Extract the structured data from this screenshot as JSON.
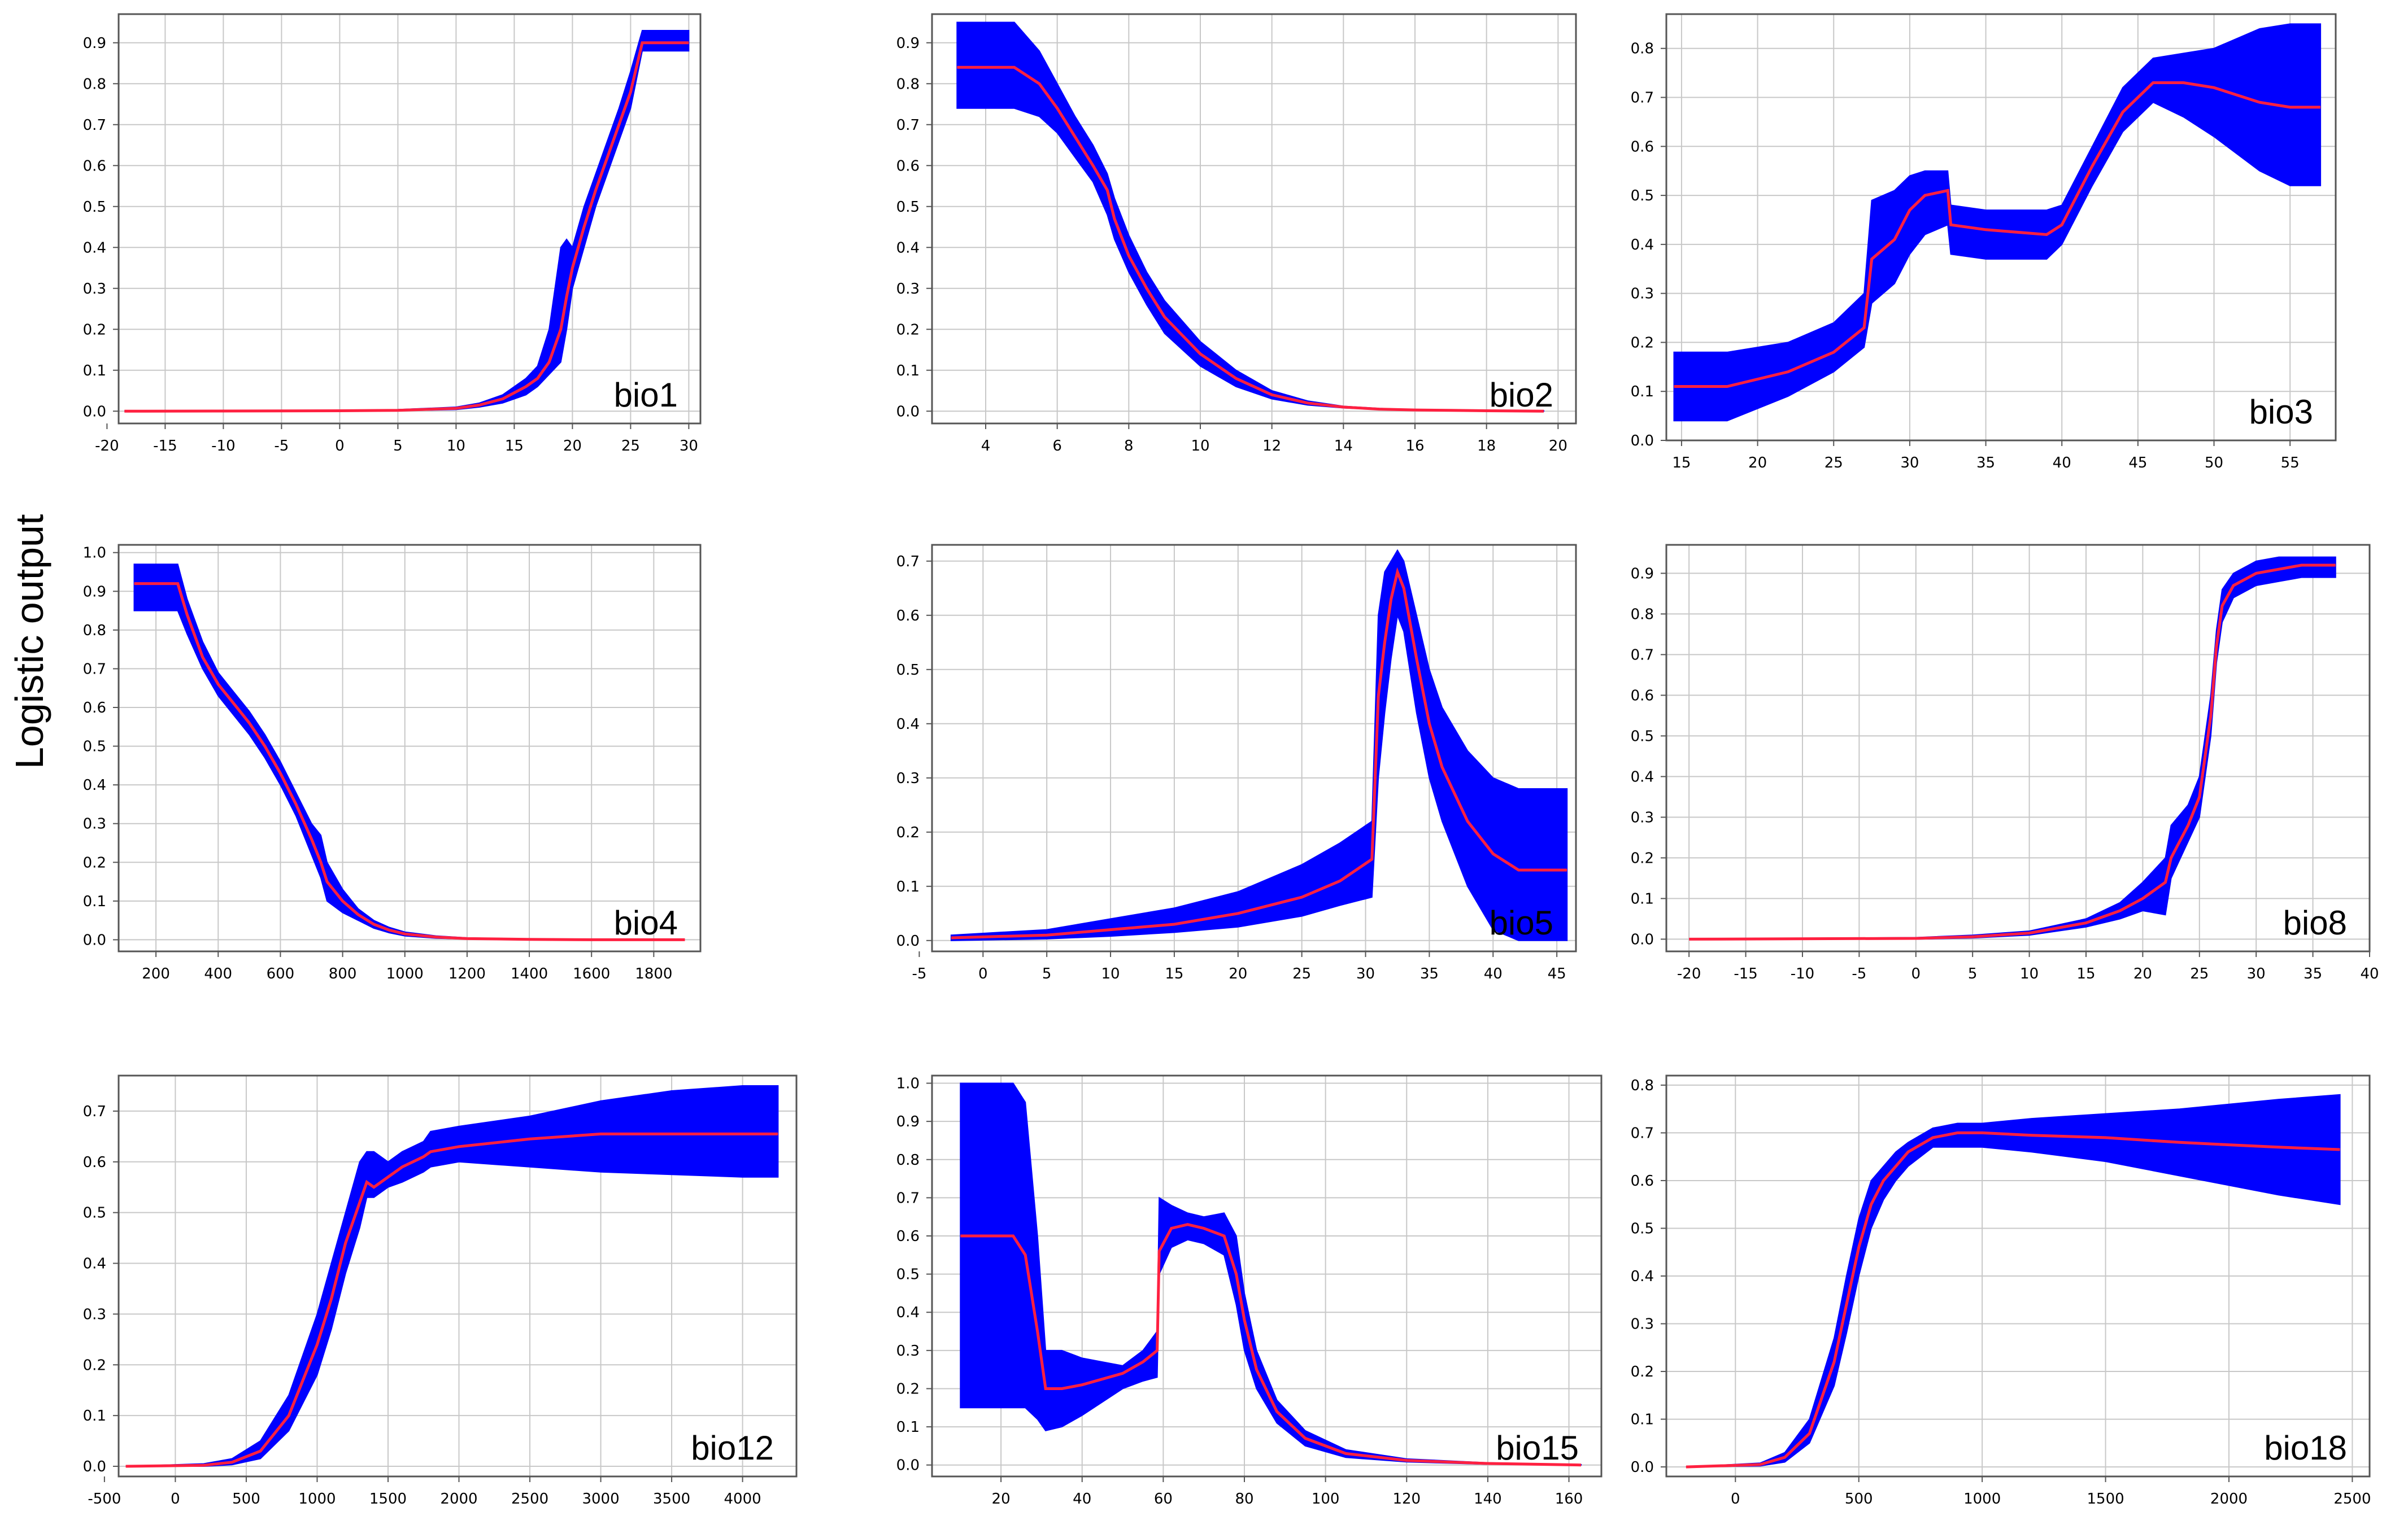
{
  "figure": {
    "ylabel": "Logistic output"
  },
  "chart_data": [
    {
      "type": "area",
      "title": "bio1",
      "xlim": [
        -19,
        31
      ],
      "ylim": [
        -0.03,
        0.97
      ],
      "xticks": [
        -20,
        -15,
        -10,
        -5,
        0,
        5,
        10,
        15,
        20,
        25,
        30
      ],
      "yticks": [
        0,
        0.1,
        0.2,
        0.3,
        0.4,
        0.5,
        0.6,
        0.7,
        0.8,
        0.9
      ],
      "grid": true,
      "band_color": "#0000ff",
      "line_color": "#ff2040",
      "x": [
        -18.5,
        0,
        5,
        10,
        12,
        14,
        16,
        17,
        18,
        19,
        19.5,
        20,
        21,
        22,
        23,
        24,
        25,
        26,
        27,
        28,
        29,
        30
      ],
      "mean": [
        0,
        0.001,
        0.002,
        0.007,
        0.015,
        0.03,
        0.06,
        0.08,
        0.12,
        0.2,
        0.28,
        0.35,
        0.45,
        0.54,
        0.62,
        0.7,
        0.78,
        0.9,
        0.9,
        0.9,
        0.9,
        0.9
      ],
      "lower": [
        0,
        0,
        0.001,
        0.004,
        0.01,
        0.02,
        0.04,
        0.06,
        0.09,
        0.12,
        0.2,
        0.3,
        0.4,
        0.5,
        0.58,
        0.66,
        0.74,
        0.88,
        0.88,
        0.88,
        0.88,
        0.88
      ],
      "upper": [
        0,
        0.002,
        0.004,
        0.01,
        0.02,
        0.04,
        0.08,
        0.11,
        0.2,
        0.4,
        0.42,
        0.4,
        0.5,
        0.58,
        0.66,
        0.74,
        0.83,
        0.93,
        0.93,
        0.93,
        0.93,
        0.93
      ]
    },
    {
      "type": "area",
      "title": "bio2",
      "xlim": [
        2.5,
        20.5
      ],
      "ylim": [
        -0.03,
        0.97
      ],
      "xticks": [
        4,
        6,
        8,
        10,
        12,
        14,
        16,
        18,
        20
      ],
      "yticks": [
        0,
        0.1,
        0.2,
        0.3,
        0.4,
        0.5,
        0.6,
        0.7,
        0.8,
        0.9
      ],
      "grid": true,
      "band_color": "#0000ff",
      "line_color": "#ff2040",
      "x": [
        3.2,
        4.8,
        5.5,
        6,
        6.5,
        7,
        7.4,
        7.6,
        8,
        8.5,
        9,
        10,
        11,
        12,
        13,
        14,
        15,
        16,
        17,
        18,
        19.6
      ],
      "mean": [
        0.84,
        0.84,
        0.8,
        0.74,
        0.67,
        0.6,
        0.54,
        0.47,
        0.38,
        0.3,
        0.23,
        0.14,
        0.08,
        0.04,
        0.02,
        0.01,
        0.005,
        0.003,
        0.002,
        0.001,
        0
      ],
      "lower": [
        0.74,
        0.74,
        0.72,
        0.68,
        0.62,
        0.56,
        0.48,
        0.42,
        0.34,
        0.26,
        0.19,
        0.11,
        0.06,
        0.03,
        0.015,
        0.008,
        0.004,
        0.002,
        0.001,
        0,
        0
      ],
      "upper": [
        0.95,
        0.95,
        0.88,
        0.8,
        0.72,
        0.65,
        0.58,
        0.52,
        0.43,
        0.34,
        0.27,
        0.17,
        0.1,
        0.05,
        0.025,
        0.012,
        0.007,
        0.004,
        0.003,
        0.002,
        0.001
      ]
    },
    {
      "type": "area",
      "title": "bio3",
      "xlim": [
        14,
        58
      ],
      "ylim": [
        0,
        0.87
      ],
      "xticks": [
        15,
        20,
        25,
        30,
        35,
        40,
        45,
        50,
        55
      ],
      "yticks": [
        0,
        0.1,
        0.2,
        0.3,
        0.4,
        0.5,
        0.6,
        0.7,
        0.8
      ],
      "grid": true,
      "band_color": "#0000ff",
      "line_color": "#ff2040",
      "x": [
        14.5,
        18,
        22,
        25,
        27,
        27.5,
        29,
        30,
        31,
        32.5,
        32.7,
        35,
        39,
        40,
        42,
        44,
        46,
        48,
        50,
        53,
        55,
        57
      ],
      "mean": [
        0.11,
        0.11,
        0.14,
        0.18,
        0.23,
        0.37,
        0.41,
        0.47,
        0.5,
        0.51,
        0.44,
        0.43,
        0.42,
        0.44,
        0.56,
        0.67,
        0.73,
        0.73,
        0.72,
        0.69,
        0.68,
        0.68
      ],
      "lower": [
        0.04,
        0.04,
        0.09,
        0.14,
        0.19,
        0.28,
        0.32,
        0.38,
        0.42,
        0.44,
        0.38,
        0.37,
        0.37,
        0.4,
        0.52,
        0.63,
        0.69,
        0.66,
        0.62,
        0.55,
        0.52,
        0.52
      ],
      "upper": [
        0.18,
        0.18,
        0.2,
        0.24,
        0.3,
        0.49,
        0.51,
        0.54,
        0.55,
        0.55,
        0.48,
        0.47,
        0.47,
        0.48,
        0.6,
        0.72,
        0.78,
        0.79,
        0.8,
        0.84,
        0.85,
        0.85
      ]
    },
    {
      "type": "area",
      "title": "bio4",
      "xlim": [
        80,
        1950
      ],
      "ylim": [
        -0.03,
        1.02
      ],
      "xticks": [
        200,
        400,
        600,
        800,
        1000,
        1200,
        1400,
        1600,
        1800
      ],
      "yticks": [
        0,
        0.1,
        0.2,
        0.3,
        0.4,
        0.5,
        0.6,
        0.7,
        0.8,
        0.9,
        1.0
      ],
      "grid": true,
      "band_color": "#0000ff",
      "line_color": "#ff2040",
      "x": [
        130,
        270,
        300,
        350,
        400,
        450,
        500,
        550,
        600,
        650,
        700,
        730,
        750,
        800,
        850,
        900,
        950,
        1000,
        1100,
        1200,
        1400,
        1600,
        1900
      ],
      "mean": [
        0.92,
        0.92,
        0.84,
        0.73,
        0.66,
        0.61,
        0.56,
        0.5,
        0.43,
        0.35,
        0.26,
        0.2,
        0.15,
        0.1,
        0.065,
        0.04,
        0.025,
        0.015,
        0.007,
        0.003,
        0.001,
        0,
        0
      ],
      "lower": [
        0.85,
        0.85,
        0.79,
        0.7,
        0.63,
        0.58,
        0.53,
        0.47,
        0.4,
        0.32,
        0.22,
        0.16,
        0.1,
        0.07,
        0.05,
        0.03,
        0.018,
        0.01,
        0.004,
        0.002,
        0,
        0,
        0
      ],
      "upper": [
        0.97,
        0.97,
        0.88,
        0.77,
        0.69,
        0.64,
        0.59,
        0.53,
        0.46,
        0.38,
        0.3,
        0.27,
        0.2,
        0.13,
        0.08,
        0.05,
        0.032,
        0.02,
        0.01,
        0.005,
        0.002,
        0.001,
        0
      ]
    },
    {
      "type": "area",
      "title": "bio5",
      "xlim": [
        -4,
        46.5
      ],
      "ylim": [
        -0.02,
        0.73
      ],
      "xticks": [
        -5,
        0,
        5,
        10,
        15,
        20,
        25,
        30,
        35,
        40,
        45
      ],
      "yticks": [
        0,
        0.1,
        0.2,
        0.3,
        0.4,
        0.5,
        0.6,
        0.7
      ],
      "grid": true,
      "band_color": "#0000ff",
      "line_color": "#ff2040",
      "x": [
        -2.5,
        5,
        10,
        15,
        20,
        25,
        28,
        30.5,
        31,
        31.5,
        32,
        32.5,
        33,
        34,
        35,
        36,
        38,
        40,
        42,
        44,
        45.8
      ],
      "mean": [
        0.005,
        0.01,
        0.02,
        0.03,
        0.05,
        0.08,
        0.11,
        0.15,
        0.45,
        0.55,
        0.63,
        0.68,
        0.65,
        0.52,
        0.4,
        0.32,
        0.22,
        0.16,
        0.13,
        0.13,
        0.13
      ],
      "lower": [
        0,
        0.003,
        0.008,
        0.015,
        0.025,
        0.045,
        0.065,
        0.08,
        0.3,
        0.42,
        0.52,
        0.6,
        0.57,
        0.42,
        0.3,
        0.22,
        0.1,
        0.02,
        0,
        0,
        0
      ],
      "upper": [
        0.01,
        0.02,
        0.04,
        0.06,
        0.09,
        0.14,
        0.18,
        0.22,
        0.6,
        0.68,
        0.7,
        0.72,
        0.7,
        0.6,
        0.5,
        0.43,
        0.35,
        0.3,
        0.28,
        0.28,
        0.28
      ]
    },
    {
      "type": "area",
      "title": "bio8",
      "xlim": [
        -22,
        40
      ],
      "ylim": [
        -0.03,
        0.97
      ],
      "xticks": [
        -20,
        -15,
        -10,
        -5,
        0,
        5,
        10,
        15,
        20,
        25,
        30,
        35,
        40
      ],
      "yticks": [
        0,
        0.1,
        0.2,
        0.3,
        0.4,
        0.5,
        0.6,
        0.7,
        0.8,
        0.9
      ],
      "grid": true,
      "band_color": "#0000ff",
      "line_color": "#ff2040",
      "x": [
        -20,
        0,
        5,
        10,
        15,
        18,
        20,
        22,
        22.5,
        24,
        25,
        26,
        26.5,
        27,
        28,
        30,
        32,
        34,
        37
      ],
      "mean": [
        0,
        0.002,
        0.006,
        0.015,
        0.04,
        0.07,
        0.1,
        0.14,
        0.2,
        0.28,
        0.35,
        0.55,
        0.72,
        0.82,
        0.87,
        0.9,
        0.91,
        0.92,
        0.92
      ],
      "lower": [
        0,
        0,
        0.003,
        0.01,
        0.03,
        0.05,
        0.07,
        0.06,
        0.15,
        0.24,
        0.3,
        0.5,
        0.68,
        0.78,
        0.84,
        0.87,
        0.88,
        0.89,
        0.89
      ],
      "upper": [
        0,
        0.004,
        0.01,
        0.02,
        0.05,
        0.09,
        0.14,
        0.2,
        0.28,
        0.33,
        0.4,
        0.6,
        0.76,
        0.86,
        0.9,
        0.93,
        0.94,
        0.94,
        0.94
      ]
    },
    {
      "type": "area",
      "title": "bio12",
      "xlim": [
        -400,
        4380
      ],
      "ylim": [
        -0.02,
        0.77
      ],
      "xticks": [
        -500,
        0,
        500,
        1000,
        1500,
        2000,
        2500,
        3000,
        3500,
        4000
      ],
      "yticks": [
        0,
        0.1,
        0.2,
        0.3,
        0.4,
        0.5,
        0.6,
        0.7
      ],
      "grid": true,
      "band_color": "#0000ff",
      "line_color": "#ff2040",
      "x": [
        -350,
        200,
        400,
        600,
        800,
        1000,
        1100,
        1200,
        1300,
        1350,
        1400,
        1500,
        1600,
        1750,
        1800,
        2000,
        2500,
        3000,
        3500,
        4000,
        4250
      ],
      "mean": [
        0,
        0.002,
        0.008,
        0.03,
        0.1,
        0.24,
        0.33,
        0.44,
        0.52,
        0.56,
        0.55,
        0.57,
        0.59,
        0.61,
        0.62,
        0.63,
        0.645,
        0.655,
        0.655,
        0.655,
        0.655
      ],
      "lower": [
        0,
        0,
        0.003,
        0.015,
        0.07,
        0.18,
        0.27,
        0.38,
        0.47,
        0.53,
        0.53,
        0.55,
        0.56,
        0.58,
        0.59,
        0.6,
        0.59,
        0.58,
        0.575,
        0.57,
        0.57
      ],
      "upper": [
        0,
        0.005,
        0.015,
        0.05,
        0.14,
        0.3,
        0.4,
        0.5,
        0.6,
        0.62,
        0.62,
        0.6,
        0.62,
        0.64,
        0.66,
        0.67,
        0.69,
        0.72,
        0.74,
        0.75,
        0.75
      ]
    },
    {
      "type": "area",
      "title": "bio15",
      "xlim": [
        3,
        168
      ],
      "ylim": [
        -0.03,
        1.02
      ],
      "xticks": [
        20,
        40,
        60,
        80,
        100,
        120,
        140,
        160
      ],
      "yticks": [
        0,
        0.1,
        0.2,
        0.3,
        0.4,
        0.5,
        0.6,
        0.7,
        0.8,
        0.9,
        1.0
      ],
      "grid": true,
      "band_color": "#0000ff",
      "line_color": "#ff2040",
      "x": [
        10,
        23,
        26,
        29,
        31,
        35,
        40,
        50,
        55,
        58.5,
        59,
        62,
        66,
        70,
        75,
        78,
        80,
        83,
        88,
        95,
        105,
        120,
        140,
        163
      ],
      "mean": [
        0.6,
        0.6,
        0.55,
        0.35,
        0.2,
        0.2,
        0.21,
        0.24,
        0.27,
        0.3,
        0.56,
        0.62,
        0.63,
        0.62,
        0.6,
        0.5,
        0.38,
        0.25,
        0.14,
        0.07,
        0.03,
        0.012,
        0.004,
        0
      ],
      "lower": [
        0.15,
        0.15,
        0.15,
        0.12,
        0.09,
        0.1,
        0.13,
        0.2,
        0.22,
        0.23,
        0.5,
        0.57,
        0.59,
        0.58,
        0.55,
        0.42,
        0.3,
        0.2,
        0.11,
        0.05,
        0.02,
        0.008,
        0.002,
        0
      ],
      "upper": [
        1.0,
        1.0,
        0.95,
        0.6,
        0.3,
        0.3,
        0.28,
        0.26,
        0.3,
        0.35,
        0.7,
        0.68,
        0.66,
        0.65,
        0.66,
        0.6,
        0.45,
        0.3,
        0.17,
        0.09,
        0.04,
        0.016,
        0.006,
        0.001
      ]
    },
    {
      "type": "area",
      "title": "bio18",
      "xlim": [
        -280,
        2570
      ],
      "ylim": [
        -0.02,
        0.82
      ],
      "xticks": [
        0,
        500,
        1000,
        1500,
        2000,
        2500
      ],
      "yticks": [
        0,
        0.1,
        0.2,
        0.3,
        0.4,
        0.5,
        0.6,
        0.7,
        0.8
      ],
      "grid": true,
      "band_color": "#0000ff",
      "line_color": "#ff2040",
      "x": [
        -200,
        100,
        200,
        300,
        400,
        450,
        500,
        550,
        600,
        650,
        700,
        800,
        900,
        1000,
        1200,
        1500,
        1800,
        2000,
        2200,
        2450
      ],
      "mean": [
        0,
        0.005,
        0.02,
        0.07,
        0.22,
        0.34,
        0.46,
        0.55,
        0.6,
        0.63,
        0.66,
        0.69,
        0.7,
        0.7,
        0.695,
        0.69,
        0.68,
        0.675,
        0.67,
        0.665
      ],
      "lower": [
        0,
        0.002,
        0.01,
        0.05,
        0.17,
        0.28,
        0.4,
        0.5,
        0.56,
        0.6,
        0.63,
        0.67,
        0.67,
        0.67,
        0.66,
        0.64,
        0.61,
        0.59,
        0.57,
        0.55
      ],
      "upper": [
        0,
        0.008,
        0.03,
        0.1,
        0.27,
        0.4,
        0.52,
        0.6,
        0.63,
        0.66,
        0.68,
        0.71,
        0.72,
        0.72,
        0.73,
        0.74,
        0.75,
        0.76,
        0.77,
        0.78
      ]
    }
  ]
}
